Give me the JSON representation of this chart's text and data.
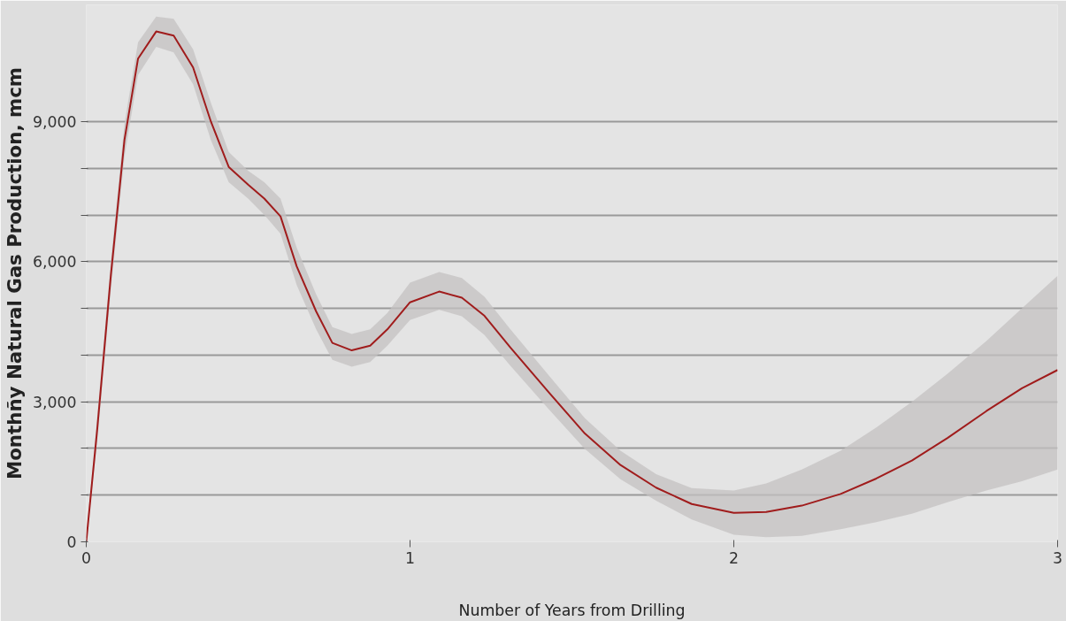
{
  "chart_data": {
    "type": "line",
    "xlabel": "Number of Years from Drilling",
    "ylabel": "Monthñy Natural Gas Production, mcm",
    "xlim": [
      0,
      3
    ],
    "xticks": [
      0,
      1,
      2,
      3
    ],
    "ylim": [
      0,
      11500
    ],
    "yticks": [
      0,
      {
        "value": 1000,
        "label": null
      },
      {
        "value": 2000,
        "label": null
      },
      {
        "value": 3000,
        "label": "3,000"
      },
      {
        "value": 4000,
        "label": null
      },
      {
        "value": 5000,
        "label": null
      },
      {
        "value": 6000,
        "label": "6,000"
      },
      {
        "value": 7000,
        "label": null
      },
      {
        "value": 8000,
        "label": null
      },
      {
        "value": 9000,
        "label": "9,000"
      }
    ],
    "grid": "y",
    "marker": "none",
    "line_style": "solid",
    "x": [
      0,
      0.034,
      0.076,
      0.118,
      0.16,
      0.216,
      0.27,
      0.33,
      0.385,
      0.44,
      0.5,
      0.55,
      0.6,
      0.65,
      0.71,
      0.76,
      0.82,
      0.877,
      0.93,
      1.0,
      1.09,
      1.16,
      1.23,
      1.31,
      1.43,
      1.54,
      1.65,
      1.76,
      1.87,
      2.0,
      2.1,
      2.21,
      2.33,
      2.44,
      2.55,
      2.66,
      2.78,
      2.89,
      3.0
    ],
    "series": [
      {
        "color": "#a01c1c",
        "values": [
          0,
          2420,
          5710,
          8610,
          10350,
          10930,
          10840,
          10160,
          9000,
          8030,
          7650,
          7350,
          6970,
          5900,
          4935,
          4260,
          4100,
          4200,
          4550,
          5130,
          5360,
          5230,
          4840,
          4160,
          3190,
          2320,
          1645,
          1160,
          810,
          620,
          640,
          775,
          1025,
          1355,
          1740,
          2225,
          2800,
          3290,
          3680
        ],
        "upper": [
          100,
          2700,
          6000,
          8950,
          10700,
          11250,
          11200,
          10550,
          9400,
          8350,
          7950,
          7700,
          7350,
          6300,
          5300,
          4600,
          4450,
          4550,
          4900,
          5550,
          5780,
          5650,
          5250,
          4550,
          3550,
          2650,
          1950,
          1450,
          1150,
          1100,
          1250,
          1550,
          1950,
          2450,
          3000,
          3600,
          4300,
          5000,
          5700
        ],
        "lower": [
          0,
          2150,
          5400,
          8250,
          10000,
          10600,
          10480,
          9800,
          8600,
          7700,
          7350,
          7000,
          6600,
          5500,
          4550,
          3900,
          3750,
          3850,
          4200,
          4750,
          4970,
          4830,
          4430,
          3770,
          2830,
          1990,
          1340,
          880,
          480,
          150,
          100,
          130,
          270,
          420,
          600,
          850,
          1100,
          1300,
          1550
        ]
      }
    ]
  }
}
